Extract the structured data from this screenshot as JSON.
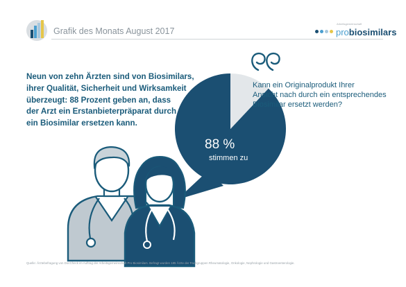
{
  "header": {
    "title": "Grafik des Monats August 2017",
    "icon": "bar-chart-icon"
  },
  "logo": {
    "small": "Arbeitsgemeinschaft",
    "word_pro": "pro",
    "word_bio": "biosimilars",
    "dot_colors": [
      "#1b4f72",
      "#4a9fd0",
      "#a7c7dc",
      "#e5c64a"
    ]
  },
  "headline": {
    "lines": [
      "Neun von zehn Ärzten sind von Biosimilars,",
      "ihrer Qualität, Sicherheit und Wirksamkeit",
      "überzeugt: 88 Prozent geben an, dass",
      "der Arzt ein Erstanbieterpräparat durch",
      "ein Biosimilar ersetzen kann."
    ]
  },
  "question": {
    "icon": "quote-icon",
    "lines": [
      "Kann ein Originalprodukt Ihrer",
      "Ansicht nach durch ein entsprechendes",
      "Biosimilar ersetzt werden?"
    ]
  },
  "illustration": {
    "icon": "doctors-icon"
  },
  "source": "Quelle: Ärztebefragung von DocCheck im Auftrag der Arbeitsgemeinschaft Pro Biosimilars. Befragt wurden 185 Ärzte der Fachgruppen Rheumatologie, Onkologie, Nephrologie und Gastroenterologie.",
  "chart_data": {
    "type": "pie",
    "slices": [
      {
        "label": "stimmen zu",
        "value": 88,
        "display": "88 %",
        "color": "#1b4f72"
      },
      {
        "value": 12,
        "color": "#e3e7ea"
      }
    ]
  },
  "colors": {
    "primary": "#1b4f72",
    "accent_light": "#4a9fd0",
    "text": "#1a5b7a",
    "muted": "#8a949c"
  }
}
